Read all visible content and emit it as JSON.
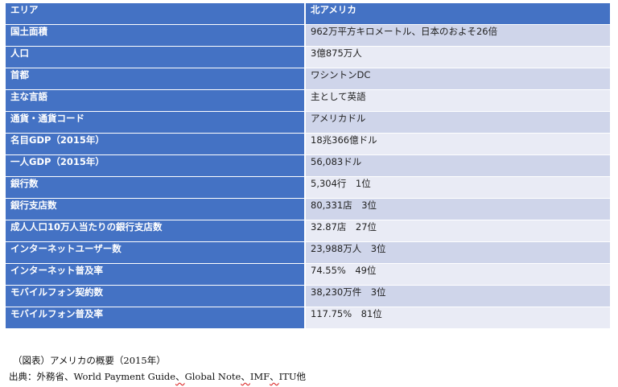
{
  "table": {
    "header": {
      "key": "エリア",
      "value": "北アメリカ"
    },
    "rows": [
      {
        "key": "国土面積",
        "value": "962万平方キロメートル、日本のおよそ26倍"
      },
      {
        "key": "人口",
        "value": "3億875万人"
      },
      {
        "key": "首都",
        "value": "ワシントンDC"
      },
      {
        "key": "主な言語",
        "value": "主として英語"
      },
      {
        "key": "通貨・通貨コード",
        "value": "アメリカドル"
      },
      {
        "key": "名目GDP（2015年）",
        "value": "18兆366億ドル"
      },
      {
        "key": "一人GDP（2015年）",
        "value": "56,083ドル"
      },
      {
        "key": "銀行数",
        "value": "5,304行　1位"
      },
      {
        "key": "銀行支店数",
        "value": "80,331店　3位"
      },
      {
        "key": "成人人口10万人当たりの銀行支店数",
        "value": "32.87店　27位"
      },
      {
        "key": "インターネットユーザー数",
        "value": "23,988万人　3位"
      },
      {
        "key": "インターネット普及率",
        "value": "74.55%　49位"
      },
      {
        "key": "モバイルフォン契約数",
        "value": "38,230万件　3位"
      },
      {
        "key": "モバイルフォン普及率",
        "value": "117.75%　81位"
      }
    ]
  },
  "caption": "（図表）アメリカの概要（2015年）",
  "source": {
    "prefix": "出典：外務省、World Payment Guide",
    "sep1": "、",
    "part2": "Global Note",
    "sep2": "、",
    "part3": "IMF",
    "sep3": "、",
    "part4": "ITU他"
  },
  "colors": {
    "header": "#4472c4",
    "row_dark": "#cfd5ea",
    "row_light": "#e9ebf5"
  }
}
